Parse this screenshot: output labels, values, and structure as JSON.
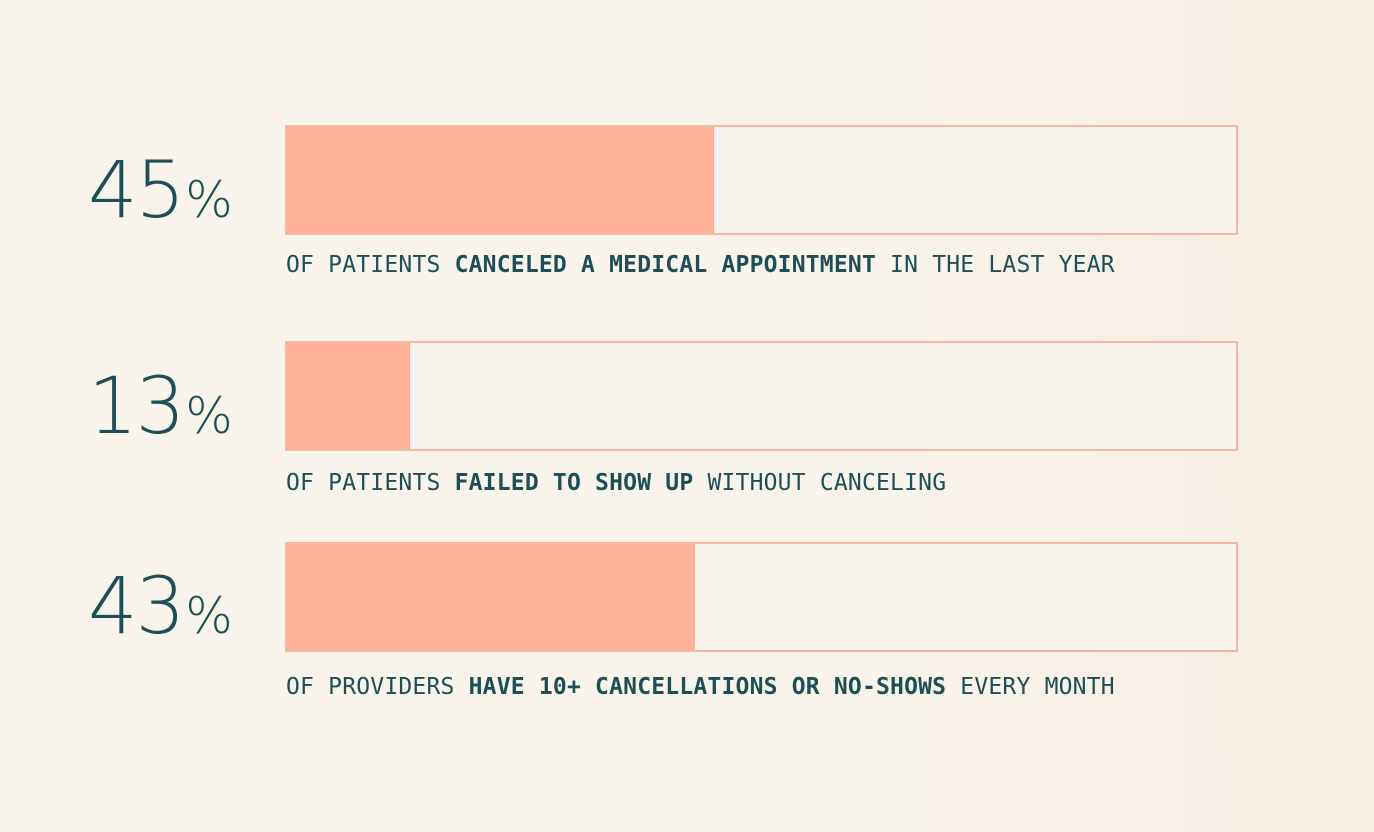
{
  "colors": {
    "text": "#1e4f57",
    "fill": "#ffb197",
    "bar_border": "#efb9a3",
    "bar_background": "#f9f5ee"
  },
  "chart_data": {
    "type": "bar",
    "orientation": "horizontal",
    "xlim": [
      0,
      100
    ],
    "series": [
      {
        "value": 45,
        "value_label": "45",
        "unit": "%",
        "caption_pre": "OF PATIENTS ",
        "caption_bold": "CANCELED A MEDICAL APPOINTMENT",
        "caption_post": " IN THE LAST YEAR"
      },
      {
        "value": 13,
        "value_label": "13",
        "unit": "%",
        "caption_pre": "OF PATIENTS ",
        "caption_bold": "FAILED TO SHOW UP",
        "caption_post": " WITHOUT CANCELING"
      },
      {
        "value": 43,
        "value_label": "43",
        "unit": "%",
        "caption_pre": "OF PROVIDERS ",
        "caption_bold": "HAVE 10+ CANCELLATIONS OR NO-SHOWS",
        "caption_post": " EVERY MONTH"
      }
    ]
  }
}
